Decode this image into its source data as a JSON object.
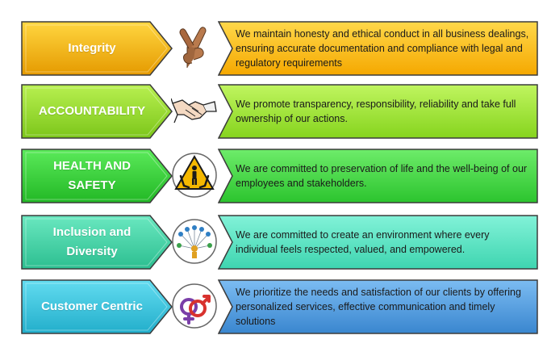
{
  "values": [
    {
      "title": "Integrity",
      "description": "We maintain honesty and ethical conduct in all business dealings, ensuring accurate documentation and compliance with legal and regulatory requirements",
      "icon": "crossed-fingers-icon",
      "arrow_color": "#F2B705",
      "arrow_color_dark": "#E59A00",
      "box_color": "#FFC820",
      "box_color_dark": "#F5A800"
    },
    {
      "title": "ACCOUNTABILITY",
      "description": "We promote transparency, responsibility, reliability and take full ownership of our actions.",
      "icon": "handshake-icon",
      "arrow_color": "#9BE32E",
      "arrow_color_dark": "#7CC61A",
      "box_color": "#A6F03A",
      "box_color_dark": "#86D41E"
    },
    {
      "title": "HEALTH AND SAFETY",
      "description": "We are committed to preservation of life and the well-being of our employees and stakeholders.",
      "icon": "safety-hands-person-icon",
      "arrow_color": "#39D63A",
      "arrow_color_dark": "#22B825",
      "box_color": "#4EE24A",
      "box_color_dark": "#2CC42E"
    },
    {
      "title": "Inclusion and Diversity",
      "description": "We are committed to create an environment where every individual feels respected, valued, and empowered.",
      "icon": "people-network-icon",
      "arrow_color": "#45D6A8",
      "arrow_color_dark": "#2CBE90",
      "box_color": "#5FE9C9",
      "box_color_dark": "#3ED5B0"
    },
    {
      "title": "Customer Centric",
      "description": "We prioritize the needs and satisfaction of our clients by offering personalized services, effective communication and timely solutions",
      "icon": "gender-symbols-icon",
      "arrow_color": "#3CC8E0",
      "arrow_color_dark": "#22AECB",
      "box_color": "#5AA5E6",
      "box_color_dark": "#3A86CF"
    }
  ]
}
